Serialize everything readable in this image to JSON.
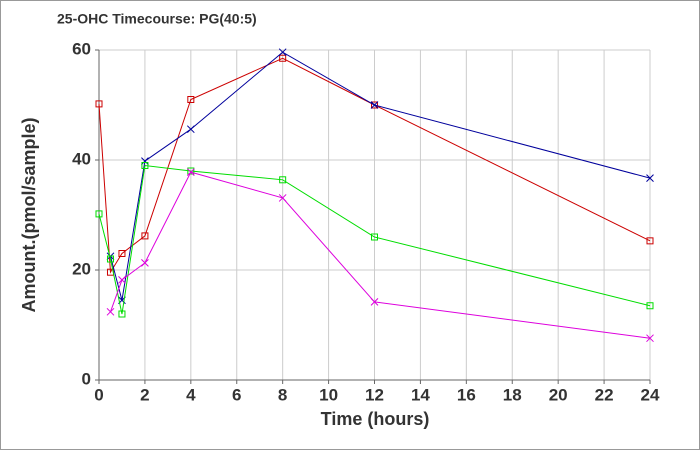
{
  "chart_data": {
    "type": "line",
    "title": "25-OHC Timecourse: PG(40:5)",
    "x_label": "Time (hours)",
    "y_label": "Amount.(pmol/sample)",
    "xlim": [
      0,
      24
    ],
    "xticks": [
      0,
      2,
      4,
      6,
      8,
      10,
      12,
      14,
      16,
      18,
      20,
      22,
      24
    ],
    "ylim": [
      0,
      60
    ],
    "yticks": [
      0,
      20,
      40,
      60
    ],
    "grid": true,
    "series": [
      {
        "color": "#cc0000",
        "marker": "square",
        "x": [
          0,
          0.5,
          1,
          2,
          4,
          8,
          12,
          24
        ],
        "values": [
          50.2,
          19.6,
          23,
          26.2,
          51,
          58.5,
          50,
          25.3
        ]
      },
      {
        "color": "#00009c",
        "marker": "x",
        "x": [
          0.5,
          1,
          2,
          4,
          8,
          12,
          24
        ],
        "values": [
          22.5,
          14.5,
          39.8,
          45.6,
          59.6,
          50,
          36.7
        ]
      },
      {
        "color": "#00dd00",
        "marker": "square",
        "x": [
          0,
          0.5,
          1,
          2,
          4,
          8,
          12,
          24
        ],
        "values": [
          30.2,
          22,
          12,
          39,
          38,
          36.4,
          26,
          13.5
        ]
      },
      {
        "color": "#dd00dd",
        "marker": "x",
        "x": [
          0.5,
          1,
          2,
          4,
          8,
          12,
          24
        ],
        "values": [
          12.4,
          18.2,
          21.3,
          37.8,
          33.1,
          14.2,
          7.6
        ]
      }
    ]
  }
}
